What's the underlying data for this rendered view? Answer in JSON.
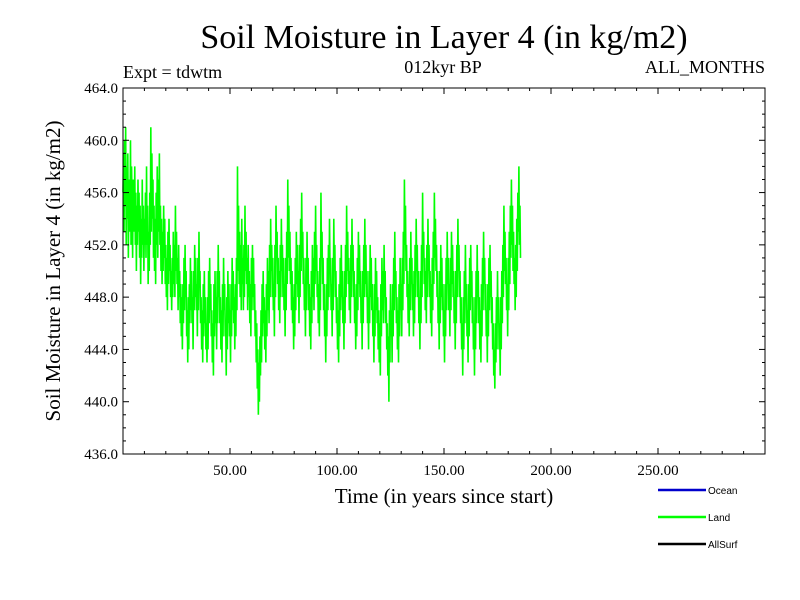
{
  "chart_data": {
    "type": "line",
    "title": "Soil Moisture in Layer 4 (in kg/m2)",
    "subtitle_left": "Expt = tdwtm",
    "subtitle_center": "012kyr BP",
    "subtitle_right": "ALL_MONTHS",
    "xlabel": "Time (in years since start)",
    "ylabel": "Soil Moisture in Layer 4 (in kg/m2)",
    "xlim": [
      0,
      300
    ],
    "ylim": [
      436,
      464
    ],
    "x_ticks": [
      50,
      100,
      150,
      200,
      250
    ],
    "x_tick_labels": [
      "50.00",
      "100.00",
      "150.00",
      "200.00",
      "250.00"
    ],
    "y_ticks": [
      436,
      440,
      444,
      448,
      452,
      456,
      460,
      464
    ],
    "y_tick_labels": [
      "436.0",
      "440.0",
      "444.0",
      "448.0",
      "452.0",
      "456.0",
      "460.0",
      "464.0"
    ],
    "grid": false,
    "legend_position": "bottom-right",
    "series": [
      {
        "name": "Ocean",
        "color": "#0000cc",
        "values": []
      },
      {
        "name": "Land",
        "color": "#00ff00",
        "x_start": 0,
        "x_step": 0.25,
        "values": [
          456,
          459,
          453,
          460,
          455,
          461,
          452,
          458,
          454,
          459,
          451,
          457,
          456,
          453,
          460,
          452,
          458,
          455,
          451,
          457,
          455,
          453,
          458,
          452,
          456,
          450,
          455,
          452,
          457,
          453,
          456,
          451,
          455,
          449,
          454,
          451,
          457,
          452,
          455,
          450,
          454,
          452,
          456,
          451,
          458,
          452,
          455,
          449,
          453,
          450,
          456,
          452,
          461,
          453,
          459,
          454,
          457,
          451,
          455,
          450,
          454,
          449,
          456,
          452,
          458,
          451,
          457,
          453,
          459,
          452,
          455,
          450,
          454,
          449,
          453,
          450,
          455,
          451,
          454,
          449,
          452,
          448,
          451,
          447,
          453,
          449,
          454,
          450,
          452,
          448,
          450,
          447,
          451,
          448,
          453,
          449,
          452,
          448,
          455,
          450,
          453,
          449,
          451,
          447,
          452,
          448,
          450,
          446,
          449,
          445,
          448,
          444,
          449,
          446,
          451,
          447,
          452,
          448,
          450,
          445,
          447,
          443,
          448,
          444,
          449,
          446,
          451,
          447,
          450,
          446,
          448,
          444,
          450,
          447,
          452,
          448,
          451,
          447,
          449,
          445,
          451,
          447,
          453,
          449,
          450,
          446,
          448,
          444,
          447,
          443,
          449,
          445,
          450,
          446,
          448,
          444,
          446,
          443,
          448,
          444,
          450,
          446,
          451,
          447,
          449,
          445,
          447,
          443,
          446,
          442,
          449,
          445,
          450,
          446,
          448,
          444,
          450,
          446,
          452,
          448,
          450,
          446,
          448,
          444,
          447,
          443,
          449,
          445,
          451,
          447,
          449,
          445,
          446,
          442,
          448,
          444,
          450,
          446,
          449,
          445,
          447,
          443,
          449,
          445,
          451,
          447,
          450,
          446,
          448,
          444,
          449,
          445,
          451,
          447,
          458,
          450,
          455,
          449,
          453,
          448,
          452,
          447,
          454,
          449,
          451,
          447,
          452,
          448,
          455,
          450,
          453,
          449,
          451,
          447,
          452,
          448,
          450,
          446,
          449,
          445,
          451,
          447,
          452,
          448,
          451,
          447,
          449,
          445,
          447,
          443,
          446,
          441,
          444,
          439,
          443,
          440,
          445,
          442,
          447,
          443,
          449,
          445,
          450,
          446,
          448,
          444,
          447,
          443,
          449,
          445,
          451,
          447,
          450,
          446,
          452,
          448,
          454,
          450,
          452,
          448,
          451,
          447,
          449,
          445,
          452,
          448,
          455,
          451,
          453,
          449,
          451,
          447,
          450,
          446,
          452,
          448,
          454,
          450,
          452,
          448,
          451,
          447,
          449,
          445,
          451,
          447,
          453,
          449,
          457,
          451,
          455,
          450,
          453,
          449,
          451,
          447,
          450,
          446,
          448,
          444,
          449,
          445,
          451,
          447,
          453,
          449,
          452,
          448,
          450,
          446,
          452,
          448,
          454,
          450,
          456,
          451,
          453,
          449,
          451,
          447,
          449,
          445,
          451,
          447,
          453,
          449,
          451,
          447,
          449,
          445,
          448,
          444,
          450,
          446,
          452,
          448,
          451,
          447,
          453,
          449,
          455,
          450,
          452,
          448,
          450,
          446,
          449,
          445,
          451,
          447,
          456,
          451,
          453,
          449,
          451,
          447,
          449,
          445,
          447,
          443,
          449,
          445,
          451,
          447,
          452,
          448,
          454,
          450,
          451,
          447,
          449,
          445,
          451,
          447,
          454,
          450,
          452,
          448,
          450,
          446,
          448,
          444,
          447,
          443,
          449,
          445,
          451,
          447,
          452,
          448,
          450,
          446,
          448,
          444,
          450,
          446,
          452,
          448,
          455,
          450,
          453,
          449,
          451,
          447,
          450,
          446,
          452,
          448,
          454,
          450,
          452,
          448,
          450,
          446,
          448,
          444,
          449,
          445,
          451,
          447,
          453,
          449,
          452,
          448,
          450,
          446,
          448,
          444,
          450,
          446,
          452,
          448,
          454,
          449,
          452,
          448,
          450,
          446,
          448,
          444,
          450,
          446,
          452,
          448,
          451,
          447,
          449,
          445,
          447,
          443,
          449,
          445,
          451,
          447,
          450,
          446,
          448,
          444,
          447,
          443,
          446,
          442,
          449,
          445,
          451,
          447,
          450,
          446,
          452,
          448,
          450,
          446,
          448,
          444,
          446,
          442,
          445,
          440,
          447,
          443,
          449,
          445,
          447,
          443,
          449,
          445,
          451,
          447,
          453,
          449,
          450,
          446,
          448,
          444,
          447,
          443,
          449,
          445,
          451,
          447,
          449,
          445,
          451,
          447,
          453,
          449,
          457,
          452,
          455,
          450,
          452,
          448,
          450,
          446,
          449,
          445,
          451,
          447,
          453,
          449,
          451,
          447,
          449,
          445,
          450,
          446,
          452,
          448,
          454,
          450,
          452,
          448,
          450,
          446,
          448,
          444,
          450,
          446,
          452,
          448,
          456,
          451,
          453,
          449,
          451,
          447,
          450,
          446,
          452,
          448,
          454,
          450,
          452,
          448,
          450,
          446,
          449,
          445,
          451,
          447,
          453,
          449,
          456,
          451,
          454,
          450,
          452,
          448,
          450,
          446,
          448,
          444,
          450,
          446,
          452,
          448,
          451,
          447,
          449,
          445,
          447,
          443,
          449,
          445,
          451,
          447,
          453,
          449,
          451,
          447,
          449,
          445,
          451,
          447,
          453,
          449,
          452,
          448,
          450,
          446,
          448,
          444,
          450,
          446,
          452,
          448,
          454,
          450,
          452,
          448,
          450,
          446,
          448,
          444,
          446,
          442,
          448,
          444,
          450,
          446,
          452,
          448,
          449,
          445,
          447,
          443,
          449,
          445,
          451,
          447,
          452,
          448,
          450,
          446,
          448,
          444,
          446,
          442,
          448,
          444,
          450,
          446,
          452,
          448,
          450,
          446,
          448,
          444,
          447,
          443,
          449,
          445,
          451,
          447,
          453,
          449,
          451,
          447,
          449,
          445,
          447,
          443,
          449,
          445,
          451,
          447,
          452,
          448,
          450,
          446,
          448,
          444,
          446,
          442,
          444,
          441,
          446,
          443,
          448,
          444,
          450,
          446,
          448,
          444,
          446,
          442,
          448,
          444,
          450,
          446,
          452,
          448,
          455,
          450,
          453,
          449,
          451,
          447,
          449,
          445,
          451,
          447,
          453,
          449,
          455,
          451,
          457,
          452,
          455,
          450,
          453,
          449,
          451,
          447,
          452,
          448,
          454,
          450,
          456,
          453,
          458,
          452,
          455,
          451
        ]
      },
      {
        "name": "AllSurf",
        "color": "#000000",
        "values": []
      }
    ]
  }
}
